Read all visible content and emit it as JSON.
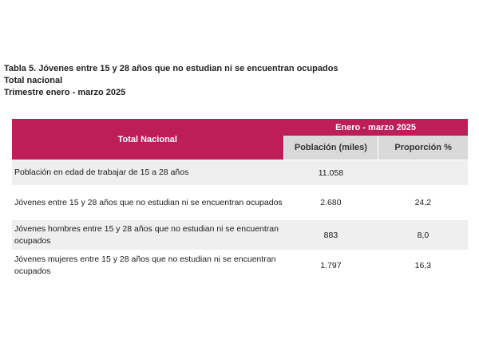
{
  "heading": {
    "title": "Tabla 5. Jóvenes entre 15 y 28 años que no estudian ni se encuentran ocupados",
    "scope": "Total nacional",
    "period": "Trimestre enero - marzo 2025"
  },
  "table": {
    "row_header": "Total Nacional",
    "period_header": "Enero - marzo 2025",
    "columns": [
      "Población (miles)",
      "Proporción %"
    ],
    "rows": [
      {
        "label": "Población en edad de trabajar de 15 a 28 años",
        "poblacion": "11.058",
        "proporcion": ""
      },
      {
        "label": "Jóvenes entre 15 y 28 años que no estudian ni se encuentran ocupados",
        "poblacion": "2.680",
        "proporcion": "24,2"
      },
      {
        "label": "Jóvenes hombres entre 15 y 28 años que no estudian ni se encuentran ocupados",
        "poblacion": "883",
        "proporcion": "8,0"
      },
      {
        "label": "Jóvenes mujeres entre 15 y 28 años que no estudian ni se encuentran ocupados",
        "poblacion": "1.797",
        "proporcion": "16,3"
      }
    ]
  },
  "colors": {
    "header_accent": "#be1e58",
    "subheader_gray": "#d9d9d9",
    "row_shade": "#efefef"
  }
}
